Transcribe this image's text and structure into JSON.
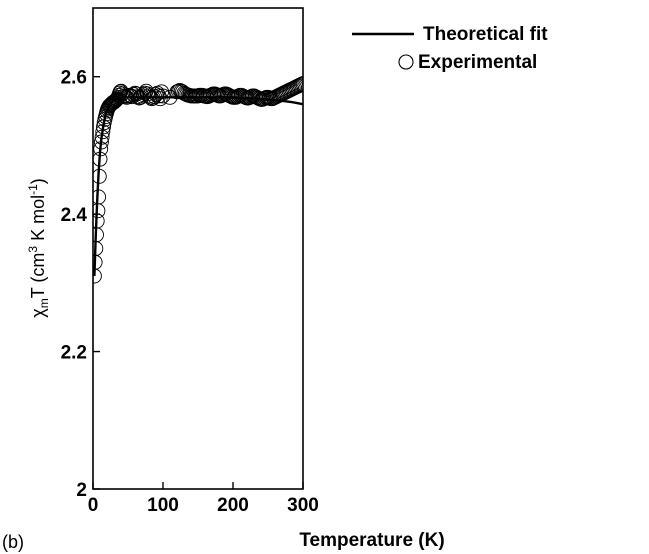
{
  "chart_data": {
    "type": "scatter",
    "panel_label": "(b)",
    "xlabel": "Temperature (K)",
    "ylabel": {
      "prefix": "χ",
      "subscript": "m",
      "main": "T (cm",
      "sup1": "3",
      "mid": " K mol",
      "sup2": "-1",
      "end": ")"
    },
    "xlim": [
      0,
      300
    ],
    "ylim": [
      2.0,
      2.7
    ],
    "x_ticks": [
      0,
      100,
      200,
      300
    ],
    "x_tick_labels": [
      "0",
      "100",
      "200",
      "300"
    ],
    "y_ticks": [
      2.0,
      2.2,
      2.4,
      2.6
    ],
    "y_tick_labels": [
      "2",
      "2.2",
      "2.4",
      "2.6"
    ],
    "grid": false,
    "legend_position": "top-right",
    "series": [
      {
        "name": "Theoretical fit",
        "style": "line",
        "color": "#000000",
        "x": [
          2,
          4,
          6,
          8,
          10,
          12,
          15,
          18,
          22,
          26,
          30,
          35,
          40,
          50,
          60,
          80,
          100,
          120,
          150,
          180,
          200,
          220,
          250,
          270,
          285,
          300
        ],
        "y": [
          2.31,
          2.37,
          2.42,
          2.46,
          2.49,
          2.51,
          2.53,
          2.545,
          2.555,
          2.562,
          2.566,
          2.568,
          2.569,
          2.57,
          2.57,
          2.57,
          2.57,
          2.57,
          2.57,
          2.57,
          2.57,
          2.569,
          2.567,
          2.565,
          2.563,
          2.56
        ]
      },
      {
        "name": "Experimental",
        "style": "open-circle",
        "color": "#000000",
        "x": [
          2,
          3,
          4,
          5,
          6,
          7,
          8,
          9,
          10,
          11,
          12,
          13,
          14,
          15,
          16,
          17,
          18,
          19,
          20,
          21,
          22,
          23,
          24,
          25,
          26,
          27,
          28,
          29,
          30,
          31,
          32,
          33,
          34,
          35,
          36,
          37,
          38,
          39,
          40,
          42,
          44,
          46,
          48,
          50,
          52,
          54,
          56,
          58,
          60,
          62,
          64,
          66,
          68,
          70,
          72,
          74,
          76,
          78,
          80,
          82,
          84,
          86,
          88,
          90,
          92,
          94,
          96,
          98,
          100,
          110,
          120,
          122,
          124,
          126,
          128,
          130,
          132,
          134,
          136,
          138,
          140,
          142,
          144,
          146,
          148,
          150,
          152,
          154,
          156,
          158,
          160,
          162,
          164,
          166,
          168,
          170,
          172,
          174,
          176,
          178,
          180,
          182,
          184,
          186,
          188,
          190,
          192,
          194,
          196,
          198,
          200,
          202,
          204,
          206,
          208,
          210,
          212,
          214,
          216,
          218,
          220,
          222,
          224,
          226,
          228,
          230,
          232,
          234,
          236,
          238,
          240,
          242,
          244,
          246,
          248,
          250,
          252,
          254,
          256,
          258,
          260,
          262,
          264,
          266,
          268,
          270,
          272,
          274,
          276,
          278,
          280,
          282,
          284,
          286,
          288,
          290,
          292,
          294,
          296,
          298,
          300
        ],
        "y": [
          2.31,
          2.33,
          2.35,
          2.37,
          2.39,
          2.405,
          2.425,
          2.455,
          2.48,
          2.495,
          2.505,
          2.512,
          2.52,
          2.527,
          2.533,
          2.538,
          2.542,
          2.546,
          2.55,
          2.553,
          2.555,
          2.557,
          2.558,
          2.559,
          2.56,
          2.561,
          2.562,
          2.563,
          2.563,
          2.564,
          2.565,
          2.566,
          2.567,
          2.568,
          2.57,
          2.573,
          2.576,
          2.578,
          2.579,
          2.575,
          2.572,
          2.571,
          2.57,
          2.572,
          2.573,
          2.572,
          2.571,
          2.574,
          2.576,
          2.575,
          2.571,
          2.569,
          2.57,
          2.572,
          2.574,
          2.576,
          2.579,
          2.575,
          2.572,
          2.57,
          2.568,
          2.569,
          2.571,
          2.574,
          2.576,
          2.572,
          2.568,
          2.578,
          2.572,
          2.57,
          2.578,
          2.579,
          2.58,
          2.579,
          2.578,
          2.576,
          2.575,
          2.574,
          2.573,
          2.573,
          2.572,
          2.572,
          2.572,
          2.572,
          2.572,
          2.572,
          2.573,
          2.573,
          2.573,
          2.572,
          2.572,
          2.571,
          2.571,
          2.572,
          2.573,
          2.574,
          2.575,
          2.575,
          2.574,
          2.573,
          2.572,
          2.572,
          2.573,
          2.574,
          2.575,
          2.575,
          2.574,
          2.573,
          2.572,
          2.571,
          2.57,
          2.57,
          2.57,
          2.571,
          2.572,
          2.573,
          2.573,
          2.572,
          2.571,
          2.57,
          2.569,
          2.569,
          2.57,
          2.571,
          2.572,
          2.572,
          2.571,
          2.57,
          2.569,
          2.568,
          2.567,
          2.567,
          2.568,
          2.569,
          2.57,
          2.57,
          2.569,
          2.568,
          2.568,
          2.569,
          2.57,
          2.571,
          2.572,
          2.573,
          2.574,
          2.575,
          2.576,
          2.577,
          2.578,
          2.579,
          2.58,
          2.581,
          2.582,
          2.583,
          2.584,
          2.585,
          2.586,
          2.587,
          2.588,
          2.589,
          2.59
        ]
      }
    ]
  }
}
